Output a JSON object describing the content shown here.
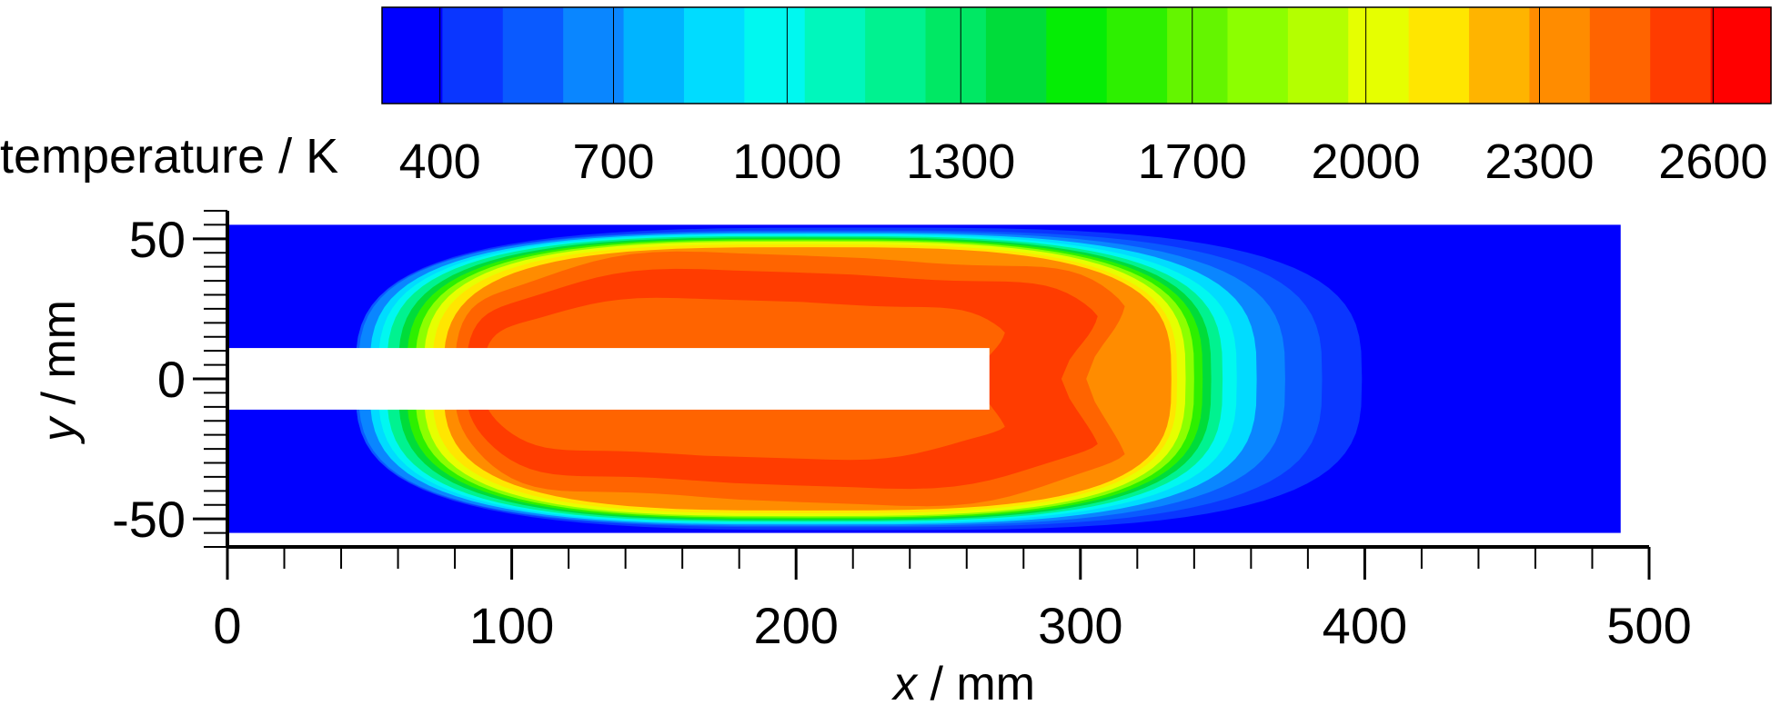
{
  "chart_data": {
    "type": "heatmap",
    "variable": "temperature",
    "colorbar": {
      "title": "temperature / K",
      "ticks": [
        400,
        700,
        1000,
        1300,
        1700,
        2000,
        2300,
        2600
      ],
      "range": [
        300,
        2700
      ],
      "levels": [
        "#0000ff",
        "#0a36ff",
        "#0a5aff",
        "#0a86ff",
        "#00b4ff",
        "#00dcff",
        "#00f8f0",
        "#00f7bc",
        "#00f290",
        "#00e864",
        "#00dc3a",
        "#05ed05",
        "#2df000",
        "#64f500",
        "#8cff00",
        "#b4ff00",
        "#e6ff00",
        "#ffe600",
        "#ffb400",
        "#ff8c00",
        "#ff6400",
        "#ff3c00",
        "#ff0000"
      ]
    },
    "x_axis": {
      "label": "x / mm",
      "range": [
        0,
        500
      ],
      "ticks": [
        0,
        100,
        200,
        300,
        400,
        500
      ]
    },
    "y_axis": {
      "label": "y / mm",
      "range": [
        -60,
        60
      ],
      "ticks": [
        -50,
        0,
        50
      ]
    },
    "domain": {
      "x": [
        0,
        490
      ],
      "y": [
        -55,
        55
      ],
      "background_value": 350
    },
    "insert": {
      "x": [
        0,
        268
      ],
      "y": [
        -11,
        11
      ],
      "color": "#ffffff"
    },
    "field_bands": [
      {
        "value": 450,
        "half_x": 177,
        "half_y": 54,
        "center_x": 222
      },
      {
        "value": 550,
        "half_x": 170,
        "half_y": 53,
        "center_x": 215
      },
      {
        "value": 700,
        "half_x": 163,
        "half_y": 52.5,
        "center_x": 209
      },
      {
        "value": 850,
        "half_x": 156,
        "half_y": 52,
        "center_x": 206
      },
      {
        "value": 1000,
        "half_x": 151,
        "half_y": 51.5,
        "center_x": 204
      },
      {
        "value": 1200,
        "half_x": 147,
        "half_y": 51,
        "center_x": 203
      },
      {
        "value": 1400,
        "half_x": 143,
        "half_y": 50.5,
        "center_x": 203
      },
      {
        "value": 1600,
        "half_x": 140,
        "half_y": 50,
        "center_x": 203
      },
      {
        "value": 1800,
        "half_x": 137,
        "half_y": 49.5,
        "center_x": 203
      },
      {
        "value": 2000,
        "half_x": 134,
        "half_y": 49,
        "center_x": 203
      },
      {
        "value": 2150,
        "half_x": 131,
        "half_y": 48,
        "center_x": 203
      },
      {
        "value": 2300,
        "half_x": 128,
        "half_y": 47,
        "center_x": 204
      },
      {
        "value": 2450,
        "half_x": 122,
        "half_y": 44,
        "center_x": 202
      },
      {
        "value": 2550,
        "half_x": 115,
        "half_y": 38,
        "center_x": 199
      },
      {
        "value": 2450,
        "half_x": 95,
        "half_y": 28,
        "center_x": 185
      }
    ]
  }
}
